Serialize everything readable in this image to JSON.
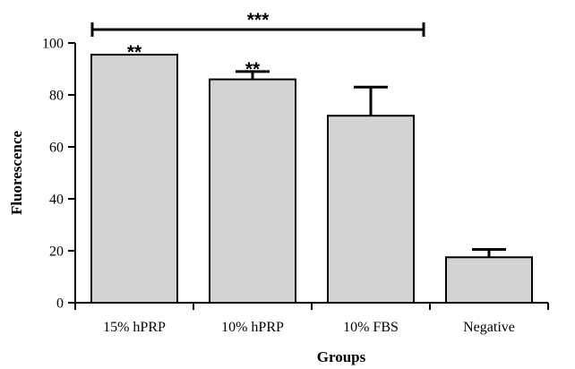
{
  "chart_data": {
    "type": "bar",
    "categories": [
      "15% hPRP",
      "10% hPRP",
      "10% FBS",
      "Negative"
    ],
    "values": [
      95.5,
      86,
      72,
      17.5
    ],
    "error_upper": [
      0,
      3,
      11,
      3
    ],
    "bar_annotations": [
      "**",
      "**",
      "",
      ""
    ],
    "bracket": {
      "from": "15% hPRP",
      "to": "10% FBS",
      "label": "***"
    },
    "xlabel": "Groups",
    "ylabel": "Fluorescence",
    "ylim": [
      0,
      100
    ],
    "yticks": [
      0,
      20,
      40,
      60,
      80,
      100
    ],
    "bar_color": "#d3d3d3",
    "grid": false
  }
}
